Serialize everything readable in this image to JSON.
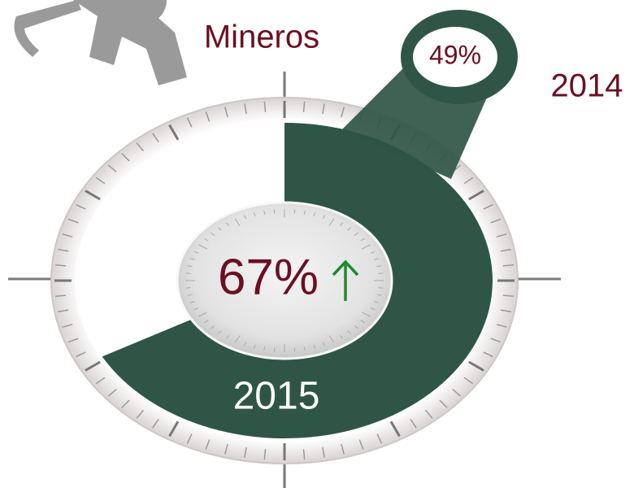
{
  "chart_data": {
    "type": "gauge",
    "title": "Mineros",
    "categories": [
      "2015",
      "2014"
    ],
    "values": [
      67,
      49
    ],
    "value_labels": [
      "67%",
      "49%"
    ],
    "ylim": [
      0,
      100
    ],
    "color": "#2f5546"
  }
}
